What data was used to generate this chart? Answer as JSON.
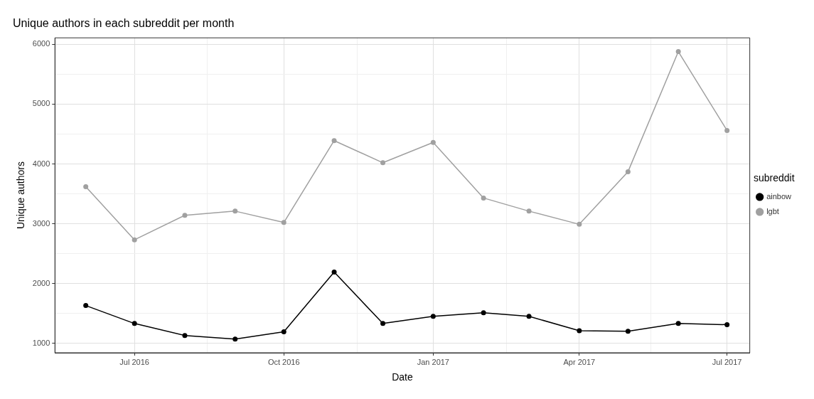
{
  "chart_data": {
    "type": "line",
    "title": "Unique authors in each subreddit per month",
    "xlabel": "Date",
    "ylabel": "Unique authors",
    "legend_title": "subreddit",
    "x": [
      "2016-06-01",
      "2016-07-01",
      "2016-08-01",
      "2016-09-01",
      "2016-10-01",
      "2016-11-01",
      "2016-12-01",
      "2017-01-01",
      "2017-02-01",
      "2017-03-01",
      "2017-04-01",
      "2017-05-01",
      "2017-06-01",
      "2017-07-01"
    ],
    "series": [
      {
        "name": "ainbow",
        "color": "#000000",
        "values": [
          1630,
          1330,
          1130,
          1070,
          1190,
          2190,
          1330,
          1450,
          1510,
          1450,
          1210,
          1200,
          1330,
          1310
        ]
      },
      {
        "name": "lgbt",
        "color": "#a0a0a0",
        "values": [
          3620,
          2730,
          3140,
          3210,
          3020,
          4390,
          4020,
          4360,
          3430,
          3210,
          2990,
          3870,
          5880,
          4560
        ]
      }
    ],
    "xlim": [
      "2016-05-13",
      "2017-07-15"
    ],
    "xticks": [
      {
        "value": "2016-07-01",
        "label": "Jul 2016"
      },
      {
        "value": "2016-08-15",
        "label": null
      },
      {
        "value": "2016-10-01",
        "label": "Oct 2016"
      },
      {
        "value": "2016-11-15",
        "label": null
      },
      {
        "value": "2017-01-01",
        "label": "Jan 2017"
      },
      {
        "value": "2017-02-15",
        "label": null
      },
      {
        "value": "2017-04-01",
        "label": "Apr 2017"
      },
      {
        "value": "2017-05-15",
        "label": null
      },
      {
        "value": "2017-07-01",
        "label": "Jul 2017"
      }
    ],
    "ylim": [
      840,
      6110
    ],
    "yticks": [
      1000,
      {
        "value": 1500,
        "label": null
      },
      2000,
      {
        "value": 2500,
        "label": null
      },
      3000,
      {
        "value": 3500,
        "label": null
      },
      4000,
      {
        "value": 4500,
        "label": null
      },
      5000,
      {
        "value": 5500,
        "label": null
      },
      6000
    ],
    "grid": true,
    "legend": "right",
    "marker": "circle",
    "line_style": "solid"
  }
}
